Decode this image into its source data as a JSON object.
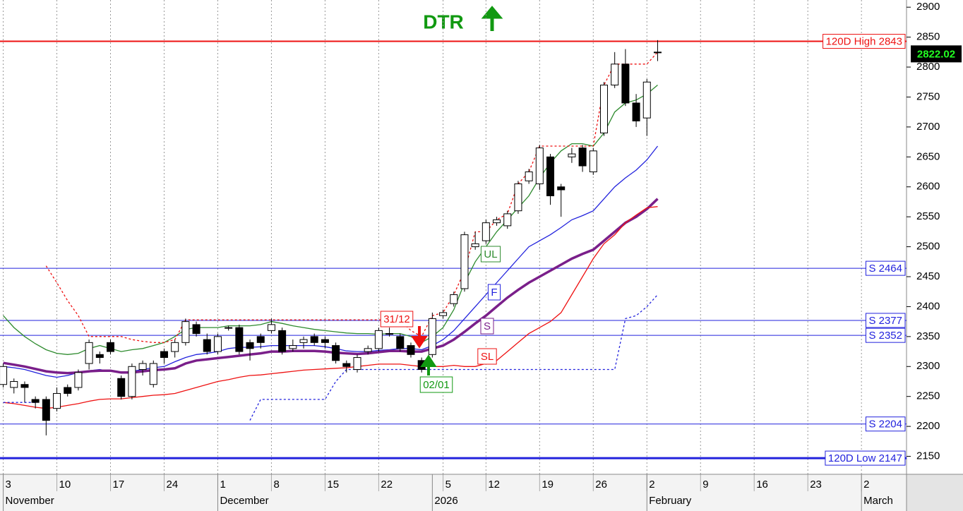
{
  "chart_data": {
    "type": "candlestick",
    "title": "DTR",
    "ylim": [
      2120,
      2912
    ],
    "yticks": [
      2150,
      2200,
      2250,
      2300,
      2350,
      2400,
      2450,
      2500,
      2550,
      2600,
      2650,
      2700,
      2750,
      2800,
      2850,
      2900
    ],
    "xlim": [
      -0.3,
      84.2
    ],
    "xticks": [
      {
        "value": 0,
        "label": "3"
      },
      {
        "value": 5,
        "label": "10"
      },
      {
        "value": 10,
        "label": "17"
      },
      {
        "value": 15,
        "label": "24"
      },
      {
        "value": 20,
        "label": "1"
      },
      {
        "value": 25,
        "label": "8"
      },
      {
        "value": 30,
        "label": "15"
      },
      {
        "value": 35,
        "label": "22"
      },
      {
        "value": 41,
        "label": "5"
      },
      {
        "value": 45,
        "label": "12"
      },
      {
        "value": 50,
        "label": "19"
      },
      {
        "value": 55,
        "label": "26"
      },
      {
        "value": 60,
        "label": "2"
      },
      {
        "value": 65,
        "label": "9"
      },
      {
        "value": 70,
        "label": "16"
      },
      {
        "value": 75,
        "label": "23"
      },
      {
        "value": 80,
        "label": "2"
      }
    ],
    "xmonths": [
      {
        "value": 0,
        "label": "November"
      },
      {
        "value": 20,
        "label": "December"
      },
      {
        "value": 40,
        "label": "2026"
      },
      {
        "value": 60,
        "label": "February"
      },
      {
        "value": 80,
        "label": "March"
      }
    ],
    "grid": true,
    "open": [
      2270,
      2265,
      2270,
      2245,
      2245,
      2230,
      2265,
      2265,
      2305,
      2320,
      2340,
      2280,
      2250,
      2295,
      2270,
      2325,
      2325,
      2340,
      2370,
      2345,
      2325,
      2365,
      2365,
      2340,
      2350,
      2360,
      2360,
      2330,
      2340,
      2350,
      2345,
      2335,
      2305,
      2295,
      2325,
      2330,
      2355,
      2350,
      2335,
      2310,
      2320,
      2385,
      2405,
      2430,
      2500,
      2510,
      2540,
      2535,
      2560,
      2610,
      2605,
      2650,
      2600,
      2650,
      2665,
      2625,
      2690,
      2770,
      2805,
      2740,
      2715,
      2825
    ],
    "high": [
      2305,
      2280,
      2275,
      2250,
      2250,
      2265,
      2270,
      2295,
      2345,
      2325,
      2345,
      2285,
      2305,
      2310,
      2310,
      2330,
      2345,
      2380,
      2375,
      2355,
      2355,
      2368,
      2370,
      2345,
      2355,
      2380,
      2365,
      2345,
      2350,
      2355,
      2350,
      2340,
      2310,
      2320,
      2335,
      2365,
      2365,
      2355,
      2340,
      2315,
      2390,
      2395,
      2425,
      2525,
      2525,
      2545,
      2550,
      2560,
      2610,
      2630,
      2670,
      2655,
      2605,
      2665,
      2670,
      2665,
      2775,
      2825,
      2830,
      2755,
      2780,
      2845
    ],
    "low": [
      2265,
      2255,
      2240,
      2230,
      2185,
      2225,
      2250,
      2260,
      2295,
      2305,
      2320,
      2245,
      2245,
      2285,
      2265,
      2305,
      2315,
      2335,
      2350,
      2320,
      2320,
      2360,
      2320,
      2310,
      2330,
      2355,
      2320,
      2325,
      2330,
      2335,
      2330,
      2305,
      2290,
      2290,
      2320,
      2325,
      2350,
      2325,
      2315,
      2290,
      2315,
      2380,
      2400,
      2425,
      2495,
      2505,
      2535,
      2530,
      2555,
      2605,
      2595,
      2570,
      2550,
      2640,
      2625,
      2620,
      2685,
      2765,
      2735,
      2700,
      2685,
      2810
    ],
    "close": [
      2300,
      2275,
      2265,
      2240,
      2210,
      2255,
      2255,
      2290,
      2340,
      2315,
      2325,
      2250,
      2300,
      2305,
      2305,
      2315,
      2340,
      2375,
      2355,
      2325,
      2350,
      2365,
      2325,
      2330,
      2340,
      2370,
      2325,
      2335,
      2345,
      2340,
      2340,
      2310,
      2300,
      2315,
      2330,
      2360,
      2355,
      2330,
      2320,
      2295,
      2380,
      2390,
      2420,
      2520,
      2505,
      2540,
      2545,
      2555,
      2605,
      2625,
      2665,
      2585,
      2595,
      2655,
      2635,
      2660,
      2770,
      2805,
      2740,
      2710,
      2775,
      2825
    ],
    "series": [
      {
        "color": "#2e8b2e",
        "style": "solid",
        "values": [
          2385,
          2365,
          2350,
          2338,
          2328,
          2322,
          2320,
          2322,
          2330,
          2335,
          2330,
          2325,
          2328,
          2330,
          2335,
          2340,
          2350,
          2362,
          2365,
          2365,
          2365,
          2368,
          2368,
          2368,
          2370,
          2375,
          2372,
          2368,
          2365,
          2362,
          2360,
          2358,
          2356,
          2355,
          2355,
          2354,
          2355,
          2355,
          2350,
          2340,
          2350,
          2365,
          2395,
          2440,
          2475,
          2500,
          2525,
          2545,
          2565,
          2585,
          2615,
          2640,
          2660,
          2672,
          2672,
          2668,
          2690,
          2725,
          2740,
          2745,
          2755,
          2770
        ]
      },
      {
        "color": "#2222dd",
        "style": "solid",
        "values": [
          2300,
          2298,
          2295,
          2290,
          2285,
          2282,
          2285,
          2290,
          2293,
          2295,
          2292,
          2290,
          2292,
          2295,
          2298,
          2300,
          2308,
          2315,
          2320,
          2322,
          2325,
          2330,
          2332,
          2332,
          2333,
          2335,
          2335,
          2335,
          2335,
          2335,
          2333,
          2330,
          2326,
          2325,
          2325,
          2327,
          2328,
          2330,
          2330,
          2328,
          2335,
          2345,
          2360,
          2380,
          2400,
          2420,
          2440,
          2460,
          2480,
          2500,
          2510,
          2520,
          2532,
          2545,
          2552,
          2560,
          2580,
          2600,
          2615,
          2628,
          2645,
          2668
        ]
      },
      {
        "color": "#7a1f8a",
        "style": "thick",
        "values": [
          2306,
          2303,
          2300,
          2296,
          2292,
          2290,
          2289,
          2290,
          2292,
          2293,
          2293,
          2290,
          2290,
          2292,
          2294,
          2295,
          2297,
          2305,
          2310,
          2312,
          2314,
          2316,
          2318,
          2320,
          2322,
          2325,
          2325,
          2326,
          2326,
          2326,
          2325,
          2323,
          2322,
          2321,
          2322,
          2324,
          2326,
          2326,
          2325,
          2325,
          2330,
          2335,
          2345,
          2358,
          2372,
          2385,
          2400,
          2415,
          2428,
          2440,
          2450,
          2460,
          2470,
          2480,
          2488,
          2495,
          2510,
          2525,
          2540,
          2550,
          2563,
          2580
        ]
      },
      {
        "color": "#ee1111",
        "style": "solid",
        "values": [
          2240,
          2238,
          2235,
          2232,
          2230,
          2232,
          2235,
          2238,
          2242,
          2245,
          2246,
          2246,
          2248,
          2250,
          2252,
          2253,
          2255,
          2260,
          2265,
          2270,
          2275,
          2278,
          2282,
          2285,
          2286,
          2288,
          2290,
          2292,
          2294,
          2295,
          2296,
          2297,
          2298,
          2300,
          2302,
          2304,
          2304,
          2304,
          2302,
          2300,
          2300,
          2300,
          2302,
          2300,
          2300,
          2305,
          2310,
          2325,
          2340,
          2355,
          2365,
          2375,
          2390,
          2420,
          2450,
          2480,
          2505,
          2520,
          2540,
          2553,
          2565,
          2567
        ]
      },
      {
        "color": "#ee1111",
        "style": "dotted",
        "values": [
          null,
          null,
          null,
          null,
          2468,
          2440,
          2410,
          2385,
          2350,
          2350,
          2350,
          2350,
          2345,
          2342,
          2340,
          2340,
          2345,
          2378,
          2378,
          2378,
          2378,
          2378,
          2378,
          2378,
          2378,
          2378,
          2378,
          2378,
          2378,
          2378,
          2378,
          2378,
          2378,
          2378,
          2378,
          2378,
          2378,
          2378,
          2360,
          2350,
          2385,
          2390,
          2420,
          2460,
          2525,
          2525,
          2545,
          2555,
          2605,
          2625,
          2668,
          2668,
          2668,
          2668,
          2668,
          2668,
          2770,
          2805,
          2805,
          2805,
          2805,
          2825
        ]
      },
      {
        "color": "#2222dd",
        "style": "dotted",
        "values": [
          2240,
          2240,
          2240,
          2240,
          null,
          null,
          null,
          null,
          null,
          null,
          null,
          null,
          null,
          null,
          null,
          null,
          null,
          null,
          null,
          null,
          null,
          null,
          null,
          2210,
          2245,
          2245,
          2245,
          2245,
          2245,
          2245,
          2245,
          2275,
          2295,
          2295,
          2295,
          2295,
          2295,
          2295,
          2295,
          2295,
          2295,
          2295,
          2295,
          2295,
          2295,
          2295,
          2295,
          2295,
          2295,
          2295,
          2295,
          2295,
          2295,
          2295,
          2295,
          2295,
          2295,
          2295,
          2380,
          2385,
          2400,
          2420
        ]
      }
    ],
    "levels": [
      {
        "value": 2843,
        "label": "120D High 2843",
        "color": "#ee1111",
        "weight": 2
      },
      {
        "value": 2464,
        "label": "S 2464",
        "color": "#2222dd",
        "weight": 1
      },
      {
        "value": 2377,
        "label": "S 2377",
        "color": "#2222dd",
        "weight": 1
      },
      {
        "value": 2352,
        "label": "S 2352",
        "color": "#2222dd",
        "weight": 1
      },
      {
        "value": 2204,
        "label": "S 2204",
        "color": "#2222dd",
        "weight": 1
      },
      {
        "value": 2147,
        "label": "120D Low 2147",
        "color": "#2222dd",
        "weight": 3
      }
    ],
    "last_price": 2822.02,
    "annotations": [
      {
        "text": "UL",
        "color": "#2e8b2e"
      },
      {
        "text": "F",
        "color": "#2222dd"
      },
      {
        "text": "S",
        "color": "#7a1f8a"
      },
      {
        "text": "SL",
        "color": "#ee1111"
      },
      {
        "text": "31/12",
        "color": "#ee1111"
      },
      {
        "text": "02/01",
        "color": "#119911"
      }
    ]
  }
}
